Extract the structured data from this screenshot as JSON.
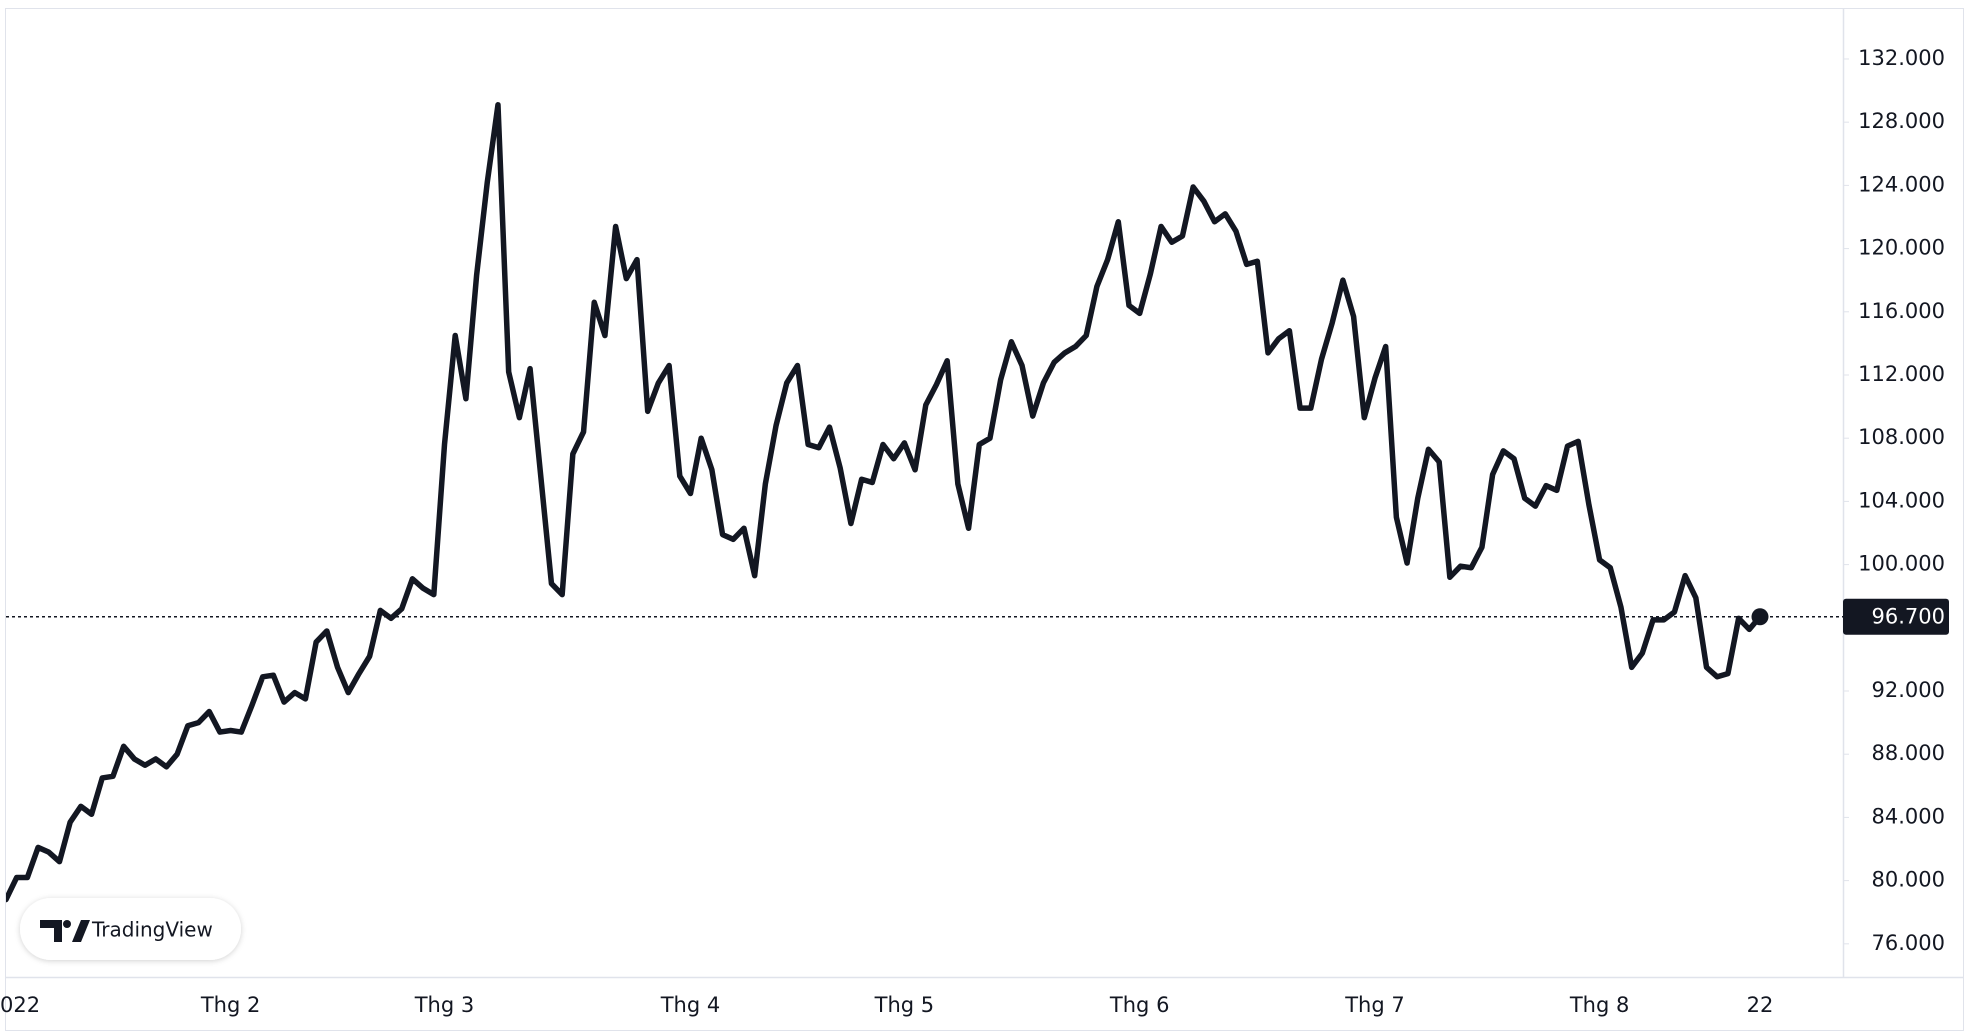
{
  "chart_data": {
    "type": "line",
    "watermark": "TradingView",
    "categories": [
      "022",
      null,
      null,
      null,
      null,
      null,
      null,
      null,
      null,
      null,
      null,
      null,
      null,
      null,
      null,
      null,
      null,
      null,
      null,
      null,
      null,
      "Thg 2",
      null,
      null,
      null,
      null,
      null,
      null,
      null,
      null,
      null,
      null,
      null,
      null,
      null,
      null,
      null,
      null,
      null,
      null,
      null,
      "Thg 3",
      null,
      null,
      null,
      null,
      null,
      null,
      null,
      null,
      null,
      null,
      null,
      null,
      null,
      null,
      null,
      null,
      null,
      null,
      null,
      null,
      null,
      null,
      "Thg 4",
      null,
      null,
      null,
      null,
      null,
      null,
      null,
      null,
      null,
      null,
      null,
      null,
      null,
      null,
      null,
      null,
      null,
      null,
      null,
      "Thg 5",
      null,
      null,
      null,
      null,
      null,
      null,
      null,
      null,
      null,
      null,
      null,
      null,
      null,
      null,
      null,
      null,
      null,
      null,
      null,
      null,
      null,
      "Thg 6",
      null,
      null,
      null,
      null,
      null,
      null,
      null,
      null,
      null,
      null,
      null,
      null,
      null,
      null,
      null,
      null,
      null,
      null,
      null,
      null,
      null,
      "Thg 7",
      null,
      null,
      null,
      null,
      null,
      null,
      null,
      null,
      null,
      null,
      null,
      null,
      null,
      null,
      null,
      null,
      null,
      null,
      null,
      null,
      "Thg 8",
      null,
      null,
      null,
      null,
      null,
      null,
      null,
      null,
      null,
      null,
      null,
      null,
      null,
      null,
      "22"
    ],
    "series": [
      {
        "color": "#131722",
        "values": [
          78800,
          80200,
          80200,
          82100,
          81800,
          81200,
          83700,
          84700,
          84200,
          86500,
          86600,
          88500,
          87700,
          87300,
          87700,
          87200,
          88000,
          89800,
          90000,
          90700,
          89400,
          89500,
          89400,
          91100,
          92900,
          93000,
          91300,
          91900,
          91500,
          95100,
          95800,
          93500,
          91900,
          93100,
          94200,
          97100,
          96600,
          97200,
          99100,
          98500,
          98100,
          107600,
          114500,
          110500,
          118300,
          124200,
          129100,
          112200,
          109300,
          112400,
          105600,
          98800,
          98100,
          107000,
          108400,
          116600,
          114500,
          121400,
          118100,
          119300,
          109700,
          111500,
          112600,
          105600,
          104500,
          108000,
          106000,
          101900,
          101600,
          102300,
          99300,
          105100,
          108800,
          111500,
          112600,
          107600,
          107400,
          108700,
          106100,
          102600,
          105400,
          105200,
          107600,
          106700,
          107700,
          106000,
          110100,
          111400,
          112900,
          105100,
          102300,
          107600,
          108000,
          111700,
          114100,
          112600,
          109400,
          111500,
          112800,
          113400,
          113800,
          114500,
          117600,
          119300,
          121700,
          116400,
          115900,
          118400,
          121400,
          120400,
          120800,
          123900,
          123000,
          121700,
          122200,
          121100,
          119000,
          119200,
          113400,
          114300,
          114800,
          109900,
          109900,
          113000,
          115300,
          118000,
          115700,
          109300,
          111800,
          113800,
          103000,
          100100,
          104200,
          107300,
          106500,
          99200,
          99900,
          99800,
          101100,
          105700,
          107200,
          106700,
          104200,
          103700,
          105000,
          104700,
          107500,
          107800,
          103800,
          100300,
          99800,
          97300,
          93500,
          94400,
          96500,
          96500,
          97000,
          99300,
          97900,
          93500,
          92900,
          93100,
          96600,
          95900,
          96700
        ]
      }
    ],
    "last_value": {
      "value": 96700,
      "label": "96.700"
    },
    "ylim": [
      73900,
      135100
    ],
    "yticks": [
      {
        "value": 76000,
        "label": "76.000"
      },
      {
        "value": 80000,
        "label": "80.000"
      },
      {
        "value": 84000,
        "label": "84.000"
      },
      {
        "value": 88000,
        "label": "88.000"
      },
      {
        "value": 92000,
        "label": "92.000"
      },
      {
        "value": 96000,
        "label": "96.000"
      },
      {
        "value": 100000,
        "label": "100.000"
      },
      {
        "value": 104000,
        "label": "104.000"
      },
      {
        "value": 108000,
        "label": "108.000"
      },
      {
        "value": 112000,
        "label": "112.000"
      },
      {
        "value": 116000,
        "label": "116.000"
      },
      {
        "value": 120000,
        "label": "120.000"
      },
      {
        "value": 124000,
        "label": "124.000"
      },
      {
        "value": 128000,
        "label": "128.000"
      },
      {
        "value": 132000,
        "label": "132.000"
      }
    ],
    "grid": false
  }
}
